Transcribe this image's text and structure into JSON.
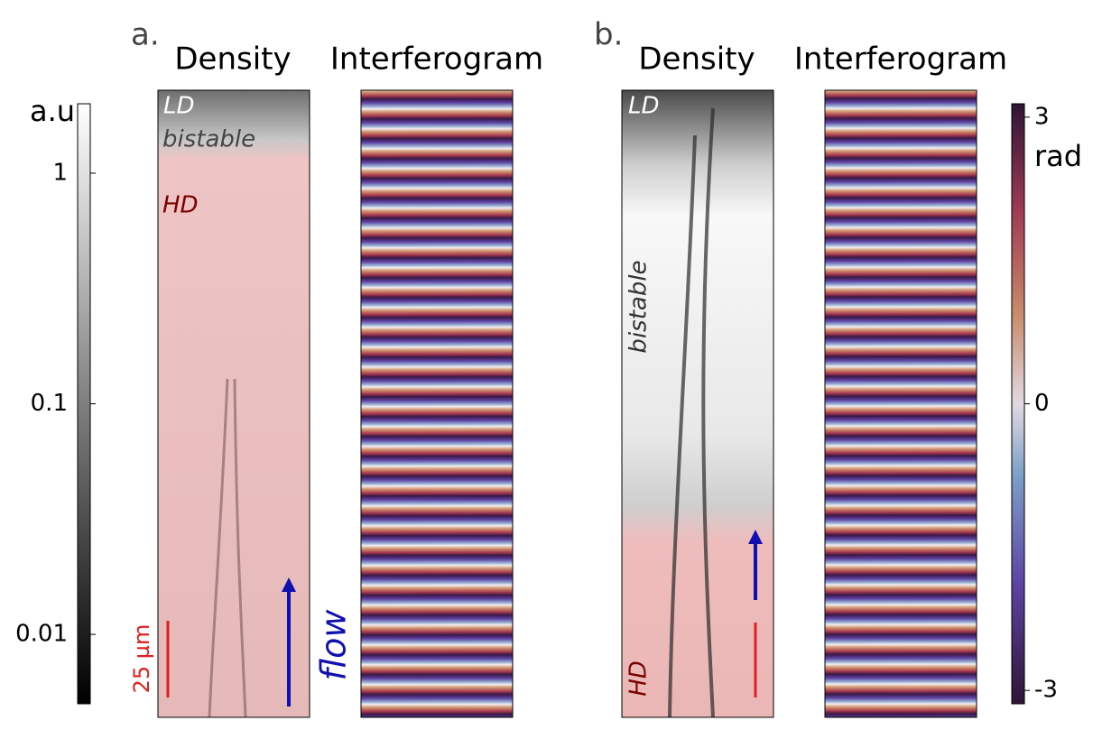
{
  "panels": [
    {
      "label": "a.",
      "density": {
        "title": "Density",
        "annotations": [
          "LD",
          "bistable",
          "HD"
        ]
      },
      "interferogram": {
        "title": "Interferogram"
      },
      "scale_bar": "25 µm",
      "flow": "flow"
    },
    {
      "label": "b.",
      "density": {
        "title": "Density",
        "annotations": [
          "LD",
          "bistable",
          "HD"
        ]
      },
      "interferogram": {
        "title": "Interferogram"
      }
    }
  ],
  "colorbars": [
    {
      "title": "a.u",
      "scale": "log",
      "lim": [
        0.005,
        2
      ],
      "ticks": [
        0.01,
        0.1,
        1
      ]
    },
    {
      "title": "rad",
      "scale": "linear",
      "lim": [
        -3.14,
        3.14
      ],
      "ticks": [
        -3,
        0,
        3
      ]
    }
  ]
}
